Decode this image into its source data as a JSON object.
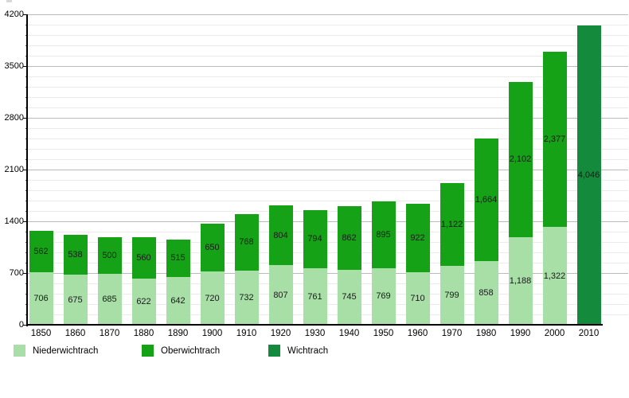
{
  "chart_data": {
    "type": "bar",
    "stacked": true,
    "title": "",
    "xlabel": "",
    "ylabel": "",
    "categories": [
      "1850",
      "1860",
      "1870",
      "1880",
      "1890",
      "1900",
      "1910",
      "1920",
      "1930",
      "1940",
      "1950",
      "1960",
      "1970",
      "1980",
      "1990",
      "2000",
      "2010"
    ],
    "series": [
      {
        "name": "Niederwichtrach",
        "color": "#a7dfa7",
        "values": [
          706,
          675,
          685,
          622,
          642,
          720,
          732,
          807,
          761,
          745,
          769,
          710,
          799,
          858,
          1188,
          1322,
          null
        ],
        "labels": [
          "706",
          "675",
          "685",
          "622",
          "642",
          "720",
          "732",
          "807",
          "761",
          "745",
          "769",
          "710",
          "799",
          "858",
          "1,188",
          "1,322",
          null
        ]
      },
      {
        "name": "Oberwichtrach",
        "color": "#16a216",
        "values": [
          562,
          538,
          500,
          560,
          515,
          650,
          768,
          804,
          794,
          862,
          895,
          922,
          1122,
          1664,
          2102,
          2377,
          null
        ],
        "labels": [
          "562",
          "538",
          "500",
          "560",
          "515",
          "650",
          "768",
          "804",
          "794",
          "862",
          "895",
          "922",
          "1,122",
          "1,664",
          "2,102",
          "2,377",
          null
        ]
      },
      {
        "name": "Wichtrach",
        "color": "#148a3c",
        "values": [
          null,
          null,
          null,
          null,
          null,
          null,
          null,
          null,
          null,
          null,
          null,
          null,
          null,
          null,
          null,
          null,
          4046
        ],
        "labels": [
          null,
          null,
          null,
          null,
          null,
          null,
          null,
          null,
          null,
          null,
          null,
          null,
          null,
          null,
          null,
          null,
          "4,046"
        ]
      }
    ],
    "ylim": [
      0,
      4200
    ],
    "yticks": [
      0,
      700,
      1400,
      2100,
      2800,
      3500,
      4200
    ],
    "ytick_labels": [
      "0",
      "700",
      "1400",
      "2100",
      "2800",
      "3500",
      "4200"
    ],
    "minor_tick_step": 140,
    "grid": true,
    "legend_position": "bottom"
  }
}
